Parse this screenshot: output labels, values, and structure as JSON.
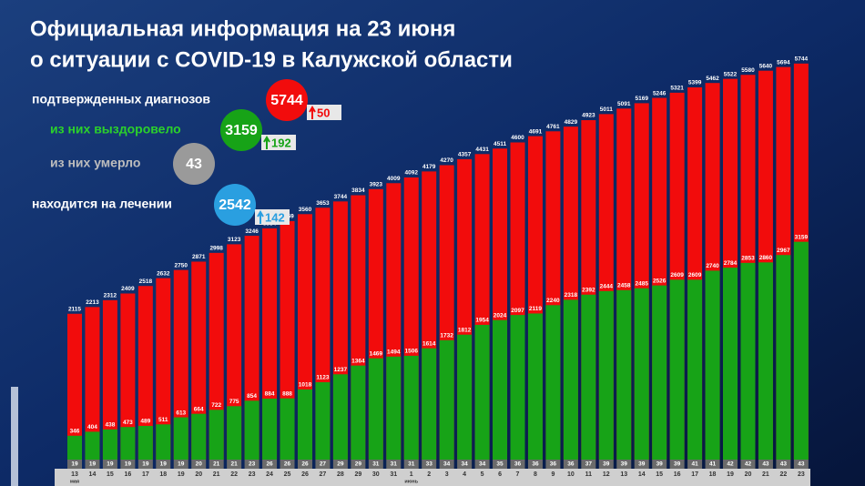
{
  "chart_data": {
    "type": "bar",
    "title_lines": [
      "Официальная информация на 23 июня",
      "о ситуации с COVID-19 в Калужской области"
    ],
    "categories": [
      "13",
      "14",
      "15",
      "16",
      "17",
      "18",
      "19",
      "20",
      "21",
      "22",
      "23",
      "24",
      "25",
      "26",
      "27",
      "28",
      "29",
      "30",
      "31",
      "1",
      "2",
      "3",
      "4",
      "5",
      "6",
      "7",
      "8",
      "9",
      "10",
      "11",
      "12",
      "13",
      "14",
      "15",
      "16",
      "17",
      "18",
      "19",
      "20",
      "21",
      "22",
      "23"
    ],
    "months": [
      "мая",
      null,
      null,
      null,
      null,
      null,
      null,
      null,
      null,
      null,
      null,
      null,
      null,
      null,
      null,
      null,
      null,
      null,
      null,
      "июнь",
      null,
      null,
      null,
      null,
      null,
      null,
      null,
      null,
      null,
      null,
      null,
      null,
      null,
      null,
      null,
      null,
      null,
      null,
      null,
      null,
      null,
      null
    ],
    "ylim": [
      0,
      5900
    ],
    "series": [
      {
        "color": "#f20c0c",
        "values": [
          2115,
          2213,
          2312,
          2409,
          2518,
          2632,
          2750,
          2871,
          2998,
          3123,
          3246,
          3354,
          3459,
          3560,
          3653,
          3744,
          3834,
          3923,
          4009,
          4092,
          4179,
          4270,
          4357,
          4431,
          4511,
          4600,
          4691,
          4761,
          4829,
          4923,
          5011,
          5091,
          5169,
          5246,
          5321,
          5399,
          5462,
          5522,
          5580,
          5640,
          5694,
          5744
        ]
      },
      {
        "color": "#17a317",
        "values": [
          346,
          404,
          438,
          473,
          489,
          511,
          613,
          664,
          722,
          775,
          854,
          884,
          888,
          1018,
          1123,
          1237,
          1364,
          1469,
          1494,
          1506,
          1614,
          1732,
          1812,
          1954,
          2024,
          2097,
          2119,
          2240,
          2318,
          2392,
          2444,
          2458,
          2485,
          2526,
          2609,
          2609,
          2740,
          2784,
          2853,
          2860,
          2967,
          3159
        ]
      },
      {
        "color": "#6b6b6b",
        "values": [
          19,
          19,
          19,
          19,
          19,
          19,
          19,
          20,
          21,
          21,
          23,
          26,
          26,
          26,
          27,
          29,
          29,
          31,
          31,
          31,
          33,
          34,
          34,
          34,
          35,
          36,
          36,
          36,
          36,
          37,
          39,
          39,
          39,
          39,
          39,
          41,
          41,
          42,
          42,
          43,
          43,
          43
        ]
      }
    ]
  },
  "summary": [
    {
      "label": "подтвержденных диагнозов",
      "value": 5744,
      "change": 50,
      "color": "#f20c0c",
      "label_color": "#ffffff"
    },
    {
      "label": "из них выздоровело",
      "value": 3159,
      "change": 192,
      "color": "#17a317",
      "label_color": "#2bd12b"
    },
    {
      "label": "из них умерло",
      "value": 43,
      "color": "#9a9a9a",
      "label_color": "#bdbdbd"
    },
    {
      "label": "находится на лечении",
      "value": 2542,
      "change": 142,
      "color": "#2a9fe0",
      "label_color": "#ffffff"
    }
  ]
}
